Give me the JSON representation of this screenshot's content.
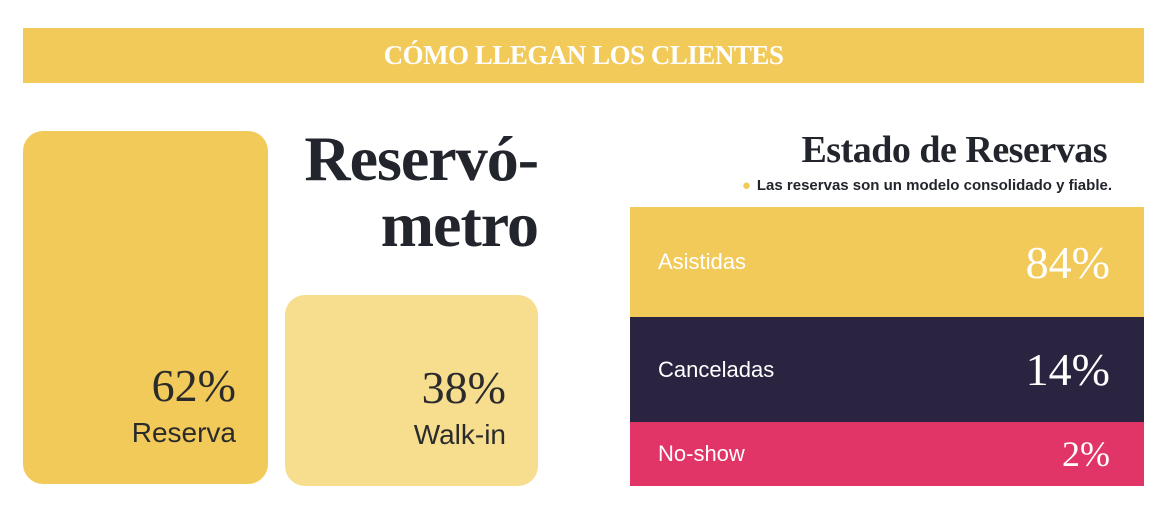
{
  "banner": {
    "title": "CÓMO LLEGAN LOS CLIENTES"
  },
  "arrival": {
    "title_line1": "Reservó-",
    "title_line2": "metro",
    "items": [
      {
        "value": "62%",
        "label": "Reserva"
      },
      {
        "value": "38%",
        "label": "Walk-in"
      }
    ]
  },
  "status": {
    "title": "Estado de Reservas",
    "subtitle": "Las reservas son un modelo consolidado y fiable.",
    "subtitle_icon": "lightbulb-icon",
    "rows": [
      {
        "label": "Asistidas",
        "value": "84%",
        "color": "#f2ca5a"
      },
      {
        "label": "Canceladas",
        "value": "14%",
        "color": "#2a2440"
      },
      {
        "label": "No-show",
        "value": "2%",
        "color": "#e03566"
      }
    ]
  }
}
